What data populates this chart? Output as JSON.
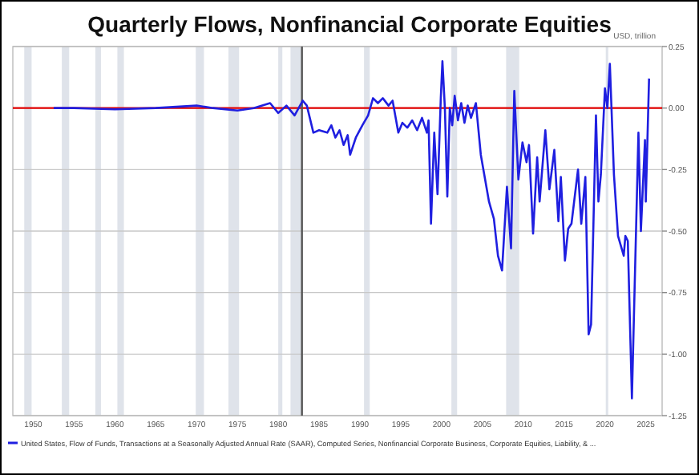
{
  "chart_data": {
    "type": "line",
    "title": "Quarterly Flows, Nonfinancial Corporate Equities",
    "annotations": [
      "USD, trillion"
    ],
    "xlim": [
      1947.5,
      2027
    ],
    "xticks": [
      1950,
      1955,
      1960,
      1965,
      1970,
      1975,
      1980,
      1985,
      1990,
      1995,
      2000,
      2005,
      2010,
      2015,
      2020,
      2025
    ],
    "ylim": [
      -1.25,
      0.25
    ],
    "yticks": [
      {
        "value": 0.25,
        "label": "0.25"
      },
      {
        "value": 0,
        "label": "0.00"
      },
      {
        "value": -0.25,
        "label": "-0.25"
      },
      {
        "value": -0.5,
        "label": "-0.50"
      },
      {
        "value": -0.75,
        "label": "-0.75"
      },
      {
        "value": -1,
        "label": "-1.00"
      },
      {
        "value": -1.25,
        "label": "-1.25"
      }
    ],
    "grid": "y",
    "legend": "bottom",
    "series": [
      {
        "name": "United States, Flow of Funds, Transactions at a Seasonally Adjusted Annual Rate (SAAR), Computed Series, Nonfinancial Corporate Business, Corporate Equities, Liability, & ...",
        "color": "#1f1fe0",
        "x": [
          1952.5,
          1955,
          1960,
          1965,
          1970,
          1972,
          1975,
          1977,
          1979,
          1980,
          1981,
          1982,
          1983,
          1983.5,
          1984.3,
          1985,
          1986,
          1986.5,
          1987,
          1987.5,
          1988,
          1988.5,
          1988.8,
          1989.5,
          1990.3,
          1991,
          1991.6,
          1992.2,
          1992.8,
          1993.5,
          1994,
          1994.7,
          1995.2,
          1995.8,
          1996.4,
          1997,
          1997.6,
          1998.2,
          1998.4,
          1998.7,
          1999.1,
          1999.5,
          1999.9,
          2000.1,
          2000.4,
          2000.7,
          2001,
          2001.3,
          2001.6,
          2002,
          2002.4,
          2002.8,
          2003.2,
          2003.6,
          2004.2,
          2004.8,
          2005.8,
          2006.4,
          2006.9,
          2007.4,
          2008,
          2008.5,
          2008.9,
          2009.4,
          2009.9,
          2010.4,
          2010.7,
          2011.2,
          2011.7,
          2012,
          2012.7,
          2013.2,
          2013.8,
          2014.3,
          2014.6,
          2015.1,
          2015.5,
          2015.9,
          2016.7,
          2017.1,
          2017.6,
          2018,
          2018.3,
          2018.9,
          2019.2,
          2019.5,
          2020,
          2020.3,
          2020.6,
          2021.1,
          2021.6,
          2022.3,
          2022.5,
          2022.8,
          2023.3,
          2024.1,
          2024.4,
          2024.9,
          2025,
          2025.4
        ],
        "values": [
          0,
          0,
          -0.005,
          0,
          0.01,
          0,
          -0.01,
          0,
          0.02,
          -0.02,
          0.01,
          -0.03,
          0.03,
          0.01,
          -0.1,
          -0.09,
          -0.1,
          -0.07,
          -0.12,
          -0.09,
          -0.15,
          -0.11,
          -0.19,
          -0.12,
          -0.07,
          -0.03,
          0.04,
          0.02,
          0.04,
          0.01,
          0.03,
          -0.1,
          -0.06,
          -0.08,
          -0.05,
          -0.09,
          -0.04,
          -0.1,
          -0.05,
          -0.47,
          -0.1,
          -0.35,
          0.04,
          0.19,
          0,
          -0.36,
          0,
          -0.07,
          0.05,
          -0.05,
          0.02,
          -0.06,
          0.01,
          -0.04,
          0.02,
          -0.19,
          -0.38,
          -0.45,
          -0.6,
          -0.66,
          -0.32,
          -0.57,
          0.07,
          -0.29,
          -0.14,
          -0.22,
          -0.15,
          -0.51,
          -0.2,
          -0.38,
          -0.09,
          -0.33,
          -0.17,
          -0.46,
          -0.28,
          -0.62,
          -0.49,
          -0.47,
          -0.25,
          -0.47,
          -0.28,
          -0.92,
          -0.88,
          -0.03,
          -0.38,
          -0.27,
          0.08,
          0,
          0.18,
          -0.27,
          -0.52,
          -0.6,
          -0.52,
          -0.54,
          -1.18,
          -0.1,
          -0.5,
          -0.13,
          -0.38,
          0.12
        ]
      }
    ],
    "ref_lines": [
      {
        "axis": "y",
        "value": 0,
        "color": "#e00000"
      },
      {
        "axis": "x",
        "value": 1982.9,
        "color": "#555555"
      }
    ],
    "bands": [
      {
        "axis": "x",
        "from": 1948.9,
        "to": 1949.8,
        "color": "#dfe3ea"
      },
      {
        "axis": "x",
        "from": 1953.5,
        "to": 1954.4,
        "color": "#dfe3ea"
      },
      {
        "axis": "x",
        "from": 1957.6,
        "to": 1958.3,
        "color": "#dfe3ea"
      },
      {
        "axis": "x",
        "from": 1960.3,
        "to": 1961.1,
        "color": "#dfe3ea"
      },
      {
        "axis": "x",
        "from": 1969.9,
        "to": 1970.9,
        "color": "#dfe3ea"
      },
      {
        "axis": "x",
        "from": 1973.9,
        "to": 1975.2,
        "color": "#dfe3ea"
      },
      {
        "axis": "x",
        "from": 1980,
        "to": 1980.5,
        "color": "#dfe3ea"
      },
      {
        "axis": "x",
        "from": 1981.5,
        "to": 1982.9,
        "color": "#dfe3ea"
      },
      {
        "axis": "x",
        "from": 1990.5,
        "to": 1991.2,
        "color": "#dfe3ea"
      },
      {
        "axis": "x",
        "from": 2001.2,
        "to": 2001.9,
        "color": "#dfe3ea"
      },
      {
        "axis": "x",
        "from": 2007.9,
        "to": 2009.5,
        "color": "#dfe3ea"
      },
      {
        "axis": "x",
        "from": 2020.1,
        "to": 2020.4,
        "color": "#dfe3ea"
      }
    ]
  }
}
